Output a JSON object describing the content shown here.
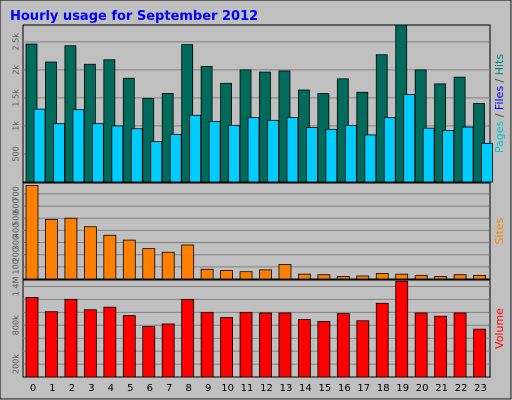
{
  "chart_data": {
    "type": "bar",
    "title": "Hourly usage for September 2012",
    "categories": [
      "0",
      "1",
      "2",
      "3",
      "4",
      "5",
      "6",
      "7",
      "8",
      "9",
      "10",
      "11",
      "12",
      "13",
      "14",
      "15",
      "16",
      "17",
      "18",
      "19",
      "20",
      "21",
      "22",
      "23"
    ],
    "panels": [
      {
        "name": "pages-files-hits",
        "ylabel_parts": [
          {
            "text": "Pages",
            "color": "#00c8c8"
          },
          {
            "text": " / ",
            "color": "#444444"
          },
          {
            "text": "Files",
            "color": "#0000ff"
          },
          {
            "text": " / ",
            "color": "#444444"
          },
          {
            "text": "Hits",
            "color": "#008080"
          }
        ],
        "yticks": [
          500,
          1000,
          1500,
          2000,
          2500
        ],
        "ytick_labels": [
          "500",
          "1k",
          "1.5k",
          "2k",
          "2.5k"
        ],
        "ylim": [
          0,
          2800
        ],
        "series": [
          {
            "name": "Hits",
            "color": "#006b5b",
            "values": [
              2460,
              2140,
              2430,
              2100,
              2180,
              1850,
              1490,
              1580,
              2450,
              2060,
              1760,
              2000,
              1960,
              1980,
              1640,
              1580,
              1840,
              1600,
              2270,
              2800,
              2000,
              1750,
              1870,
              1400
            ]
          },
          {
            "name": "Files",
            "color": "#00ccff",
            "values": [
              1300,
              1040,
              1290,
              1040,
              1000,
              950,
              720,
              850,
              1190,
              1080,
              1010,
              1150,
              1100,
              1150,
              970,
              940,
              1010,
              840,
              1150,
              1560,
              960,
              920,
              980,
              690
            ]
          }
        ]
      },
      {
        "name": "sites",
        "ylabel_parts": [
          {
            "text": "Sites",
            "color": "#ff8000"
          }
        ],
        "yticks": [
          100,
          200,
          300,
          400,
          500,
          600,
          700
        ],
        "ytick_labels": [
          "100",
          "200",
          "300",
          "400",
          "500",
          "600",
          "700"
        ],
        "ylim": [
          0,
          790
        ],
        "series": [
          {
            "name": "Sites",
            "color": "#ff8000",
            "values": [
              770,
              490,
              500,
              430,
              360,
              320,
              250,
              220,
              280,
              80,
              70,
              60,
              75,
              120,
              40,
              35,
              20,
              25,
              45,
              40,
              30,
              20,
              35,
              30
            ]
          }
        ]
      },
      {
        "name": "volume",
        "ylabel_parts": [
          {
            "text": "Volume",
            "color": "#ff0000"
          }
        ],
        "yticks": [
          200,
          400,
          600,
          800,
          1000,
          1200,
          1400
        ],
        "ytick_labels": [
          "200k",
          "",
          "",
          "800k",
          "",
          "",
          "1.4M"
        ],
        "ylim": [
          0,
          1500
        ],
        "series": [
          {
            "name": "Volume",
            "color": "#ff0000",
            "values": [
              1230,
              1010,
              1200,
              1040,
              1080,
              950,
              780,
              820,
              1200,
              1000,
              920,
              1000,
              990,
              990,
              890,
              860,
              980,
              870,
              1140,
              1480,
              990,
              940,
              990,
              740
            ]
          }
        ]
      }
    ]
  }
}
